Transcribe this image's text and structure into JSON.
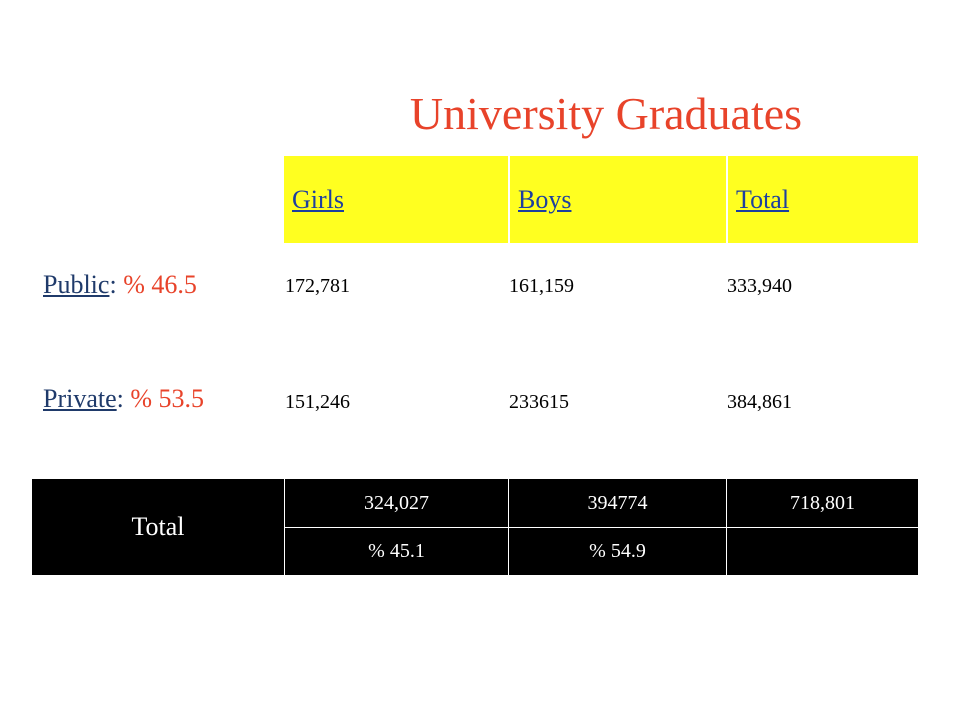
{
  "title": "University Graduates",
  "table": {
    "headers": [
      "Girls",
      "Boys",
      "Total"
    ],
    "rows": [
      {
        "label_link": "Public",
        "label_colon": ":",
        "label_pct": "% 46.5",
        "values": [
          "172,781",
          "161,159",
          "333,940"
        ]
      },
      {
        "label_link": "Private",
        "label_colon": ":",
        "label_pct": "% 53.5",
        "values": [
          "151,246",
          "233615",
          "384,861"
        ]
      }
    ],
    "total": {
      "label": "Total",
      "values": [
        "324,027",
        "394774",
        "718,801"
      ],
      "percents": [
        "% 45.1",
        "% 54.9",
        ""
      ]
    }
  },
  "colors": {
    "title": "#e8432a",
    "header_bg": "#ffff20",
    "header_text": "#1d3fa0",
    "total_bg": "#000000"
  }
}
